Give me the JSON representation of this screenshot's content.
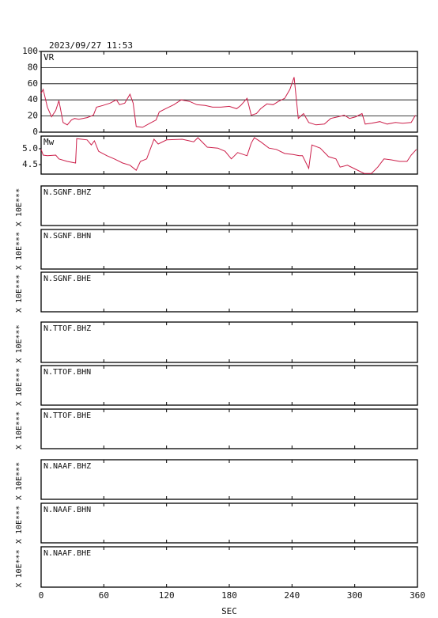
{
  "header": {
    "timestamp": "2023/09/27 11:53"
  },
  "x_axis": {
    "label": "SEC",
    "xlim": [
      0,
      360
    ],
    "xticks": [
      0,
      60,
      120,
      180,
      240,
      300,
      360
    ]
  },
  "chart_data": [
    {
      "type": "line",
      "label": "VR",
      "color": "#cc1f4a",
      "grid": true,
      "ylim": [
        0,
        100
      ],
      "yticks": [
        0,
        20,
        40,
        60,
        80,
        100
      ],
      "x": [
        0,
        2,
        6,
        10,
        14,
        17,
        21,
        25,
        29,
        32,
        36,
        44,
        50,
        53,
        59,
        66,
        72,
        75,
        80,
        85,
        88,
        91,
        97,
        104,
        110,
        113,
        119,
        127,
        134,
        142,
        149,
        157,
        164,
        172,
        180,
        187,
        191,
        197,
        201,
        206,
        210,
        216,
        222,
        227,
        233,
        238,
        242,
        246,
        251,
        256,
        263,
        271,
        277,
        284,
        290,
        295,
        301,
        307,
        310,
        316,
        324,
        331,
        339,
        346,
        354,
        358
      ],
      "values": [
        48,
        53,
        31,
        19,
        27,
        39,
        12,
        9,
        15,
        17,
        16,
        18,
        21,
        31,
        33,
        36,
        40,
        34,
        36,
        47,
        36,
        7,
        6,
        11,
        15,
        25,
        29,
        34,
        40,
        38,
        34,
        33,
        31,
        31,
        32,
        29,
        33,
        42,
        21,
        23,
        29,
        35,
        34,
        38,
        42,
        53,
        68,
        17,
        23,
        12,
        9,
        10,
        17,
        19,
        21,
        17,
        19,
        23,
        10,
        11,
        13,
        10,
        12,
        11,
        12,
        21
      ]
    },
    {
      "type": "line",
      "label": "Mw",
      "color": "#cc1f4a",
      "grid": false,
      "ylim": [
        4.2,
        5.4
      ],
      "yticks": [
        {
          "value": 4.5,
          "label": "4.5"
        },
        {
          "value": 5,
          "label": "5.0"
        }
      ],
      "x": [
        0,
        2,
        6,
        14,
        17,
        25,
        33,
        34,
        44,
        48,
        51,
        55,
        63,
        70,
        78,
        85,
        91,
        95,
        101,
        108,
        112,
        120,
        135,
        146,
        150,
        159,
        169,
        176,
        182,
        188,
        197,
        201,
        204,
        210,
        218,
        225,
        233,
        241,
        247,
        250,
        256,
        259,
        267,
        275,
        282,
        286,
        293,
        301,
        309,
        316,
        322,
        328,
        335,
        343,
        350,
        354,
        359
      ],
      "values": [
        4.98,
        4.8,
        4.78,
        4.8,
        4.68,
        4.6,
        4.55,
        5.32,
        5.28,
        5.12,
        5.25,
        4.92,
        4.78,
        4.68,
        4.55,
        4.48,
        4.32,
        4.6,
        4.68,
        5.3,
        5.15,
        5.28,
        5.3,
        5.22,
        5.35,
        5.05,
        5.02,
        4.92,
        4.68,
        4.88,
        4.78,
        5.18,
        5.35,
        5.22,
        5.02,
        4.98,
        4.85,
        4.82,
        4.78,
        4.78,
        4.38,
        5.12,
        5.02,
        4.75,
        4.68,
        4.42,
        4.48,
        4.35,
        4.22,
        4.22,
        4.42,
        4.68,
        4.65,
        4.6,
        4.6,
        4.8,
        4.98
      ]
    },
    {
      "type": "waveform",
      "label": "N.SGNF.BHZ",
      "ylabel": "X 10E***"
    },
    {
      "type": "waveform",
      "label": "N.SGNF.BHN",
      "ylabel": "X 10E***"
    },
    {
      "type": "waveform",
      "label": "N.SGNF.BHE",
      "ylabel": "X 10E***"
    },
    {
      "type": "waveform",
      "label": "N.TTOF.BHZ",
      "ylabel": "X 10E***"
    },
    {
      "type": "waveform",
      "label": "N.TTOF.BHN",
      "ylabel": "X 10E***"
    },
    {
      "type": "waveform",
      "label": "N.TTOF.BHE",
      "ylabel": "X 10E***"
    },
    {
      "type": "waveform",
      "label": "N.NAAF.BHZ",
      "ylabel": "X 10E***"
    },
    {
      "type": "waveform",
      "label": "N.NAAF.BHN",
      "ylabel": "X 10E***"
    },
    {
      "type": "waveform",
      "label": "N.NAAF.BHE",
      "ylabel": "X 10E***"
    }
  ]
}
